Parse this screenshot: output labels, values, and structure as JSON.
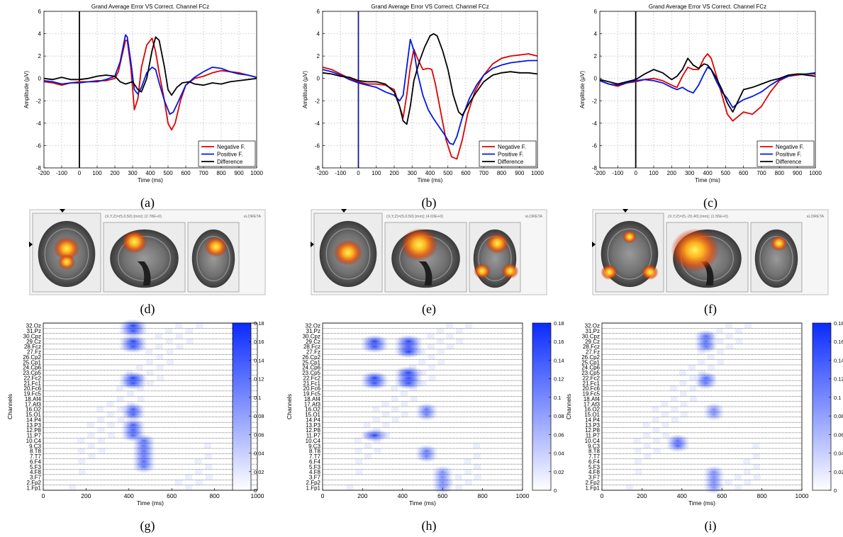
{
  "panel_labels": [
    "(a)",
    "(b)",
    "(c)",
    "(d)",
    "(e)",
    "(f)",
    "(g)",
    "(h)",
    "(i)"
  ],
  "colors": {
    "negative": "#e00000",
    "positive": "#0018e0",
    "difference": "#000000",
    "heat_max": "#0a2bff"
  },
  "chart_data": [
    {
      "type": "line",
      "title": "Grand Average Error VS Correct. Channel FCz",
      "xlabel": "Time (ms)",
      "ylabel": "Amplitude (μV)",
      "xlim": [
        -200,
        1000
      ],
      "ylim": [
        -8,
        6
      ],
      "xticks": [
        -200,
        -100,
        0,
        100,
        200,
        300,
        400,
        500,
        600,
        700,
        800,
        900,
        1000
      ],
      "yticks": [
        -8,
        -6,
        -4,
        -2,
        0,
        2,
        4,
        6
      ],
      "grid": true,
      "legend_position": "bottom-right",
      "series": [
        {
          "name": "Negative F.",
          "color": "#e00000",
          "x": [
            -200,
            -150,
            -100,
            -50,
            0,
            50,
            100,
            150,
            200,
            220,
            240,
            260,
            270,
            290,
            310,
            330,
            350,
            380,
            410,
            430,
            450,
            480,
            500,
            520,
            540,
            570,
            600,
            650,
            700,
            750,
            800,
            850,
            900,
            950,
            1000
          ],
          "y": [
            -0.3,
            -0.4,
            -0.6,
            -0.4,
            -0.3,
            -0.3,
            -0.2,
            -0.2,
            0,
            0.6,
            2.0,
            3.4,
            3.4,
            1.0,
            -2.8,
            -1.8,
            1.0,
            3.0,
            3.6,
            2.4,
            0.5,
            -2.0,
            -4.0,
            -4.6,
            -4.0,
            -2.0,
            -0.6,
            0,
            0.2,
            0.5,
            0.7,
            0.6,
            0.5,
            0.3,
            0.1
          ]
        },
        {
          "name": "Positive F.",
          "color": "#0018e0",
          "x": [
            -200,
            -150,
            -100,
            -50,
            0,
            50,
            100,
            150,
            200,
            230,
            260,
            270,
            290,
            310,
            330,
            350,
            380,
            410,
            430,
            450,
            480,
            510,
            530,
            560,
            600,
            650,
            700,
            750,
            800,
            850,
            900,
            950,
            1000
          ],
          "y": [
            -0.2,
            -0.3,
            -0.5,
            -0.4,
            -0.4,
            -0.3,
            -0.3,
            -0.1,
            0.2,
            1.5,
            3.9,
            3.7,
            1.5,
            -1.0,
            -1.4,
            -0.8,
            0.5,
            1.0,
            0.8,
            -0.4,
            -2.0,
            -3.2,
            -3.0,
            -2.0,
            -0.6,
            0.1,
            0.6,
            1.0,
            0.9,
            0.6,
            0.4,
            0.3,
            0.1
          ]
        },
        {
          "name": "Difference",
          "color": "#000000",
          "x": [
            -200,
            -150,
            -100,
            -50,
            0,
            50,
            100,
            150,
            200,
            230,
            260,
            280,
            300,
            330,
            350,
            380,
            410,
            430,
            450,
            480,
            500,
            520,
            550,
            580,
            620,
            650,
            700,
            750,
            800,
            850,
            900,
            950,
            1000
          ],
          "y": [
            0,
            -0.1,
            0.1,
            -0.1,
            -0.1,
            0,
            0.2,
            0.3,
            0.2,
            -0.3,
            -0.5,
            -0.4,
            -0.3,
            -1.0,
            -1.2,
            0,
            2.5,
            3.7,
            3.4,
            1.0,
            -1.0,
            -1.5,
            -0.8,
            -0.4,
            -0.3,
            -0.5,
            -0.6,
            -0.4,
            -0.5,
            -0.3,
            -0.2,
            -0.1,
            0
          ]
        }
      ]
    },
    {
      "type": "line",
      "title": "Grand Average Error VS Correct. Channel FCz",
      "xlabel": "Time (ms)",
      "ylabel": "Amplitude (μV)",
      "xlim": [
        -200,
        1000
      ],
      "ylim": [
        -8,
        6
      ],
      "xticks": [
        -200,
        -100,
        0,
        100,
        200,
        300,
        400,
        500,
        600,
        700,
        800,
        900,
        1000
      ],
      "yticks": [
        -8,
        -6,
        -4,
        -2,
        0,
        2,
        4,
        6
      ],
      "grid": true,
      "legend_position": "bottom-right",
      "series": [
        {
          "name": "Negative F.",
          "color": "#e00000",
          "x": [
            -200,
            -150,
            -100,
            -50,
            0,
            50,
            100,
            150,
            200,
            230,
            250,
            270,
            290,
            310,
            330,
            360,
            390,
            410,
            430,
            460,
            490,
            520,
            550,
            580,
            610,
            650,
            700,
            750,
            800,
            850,
            900,
            950,
            1000
          ],
          "y": [
            1.0,
            0.8,
            0.4,
            0,
            -0.3,
            -0.5,
            -0.5,
            -0.6,
            -1.0,
            -2.5,
            -3.5,
            -1.5,
            1.0,
            2.6,
            1.8,
            0.8,
            0.9,
            0.8,
            -0.5,
            -3.0,
            -5.5,
            -7.0,
            -7.2,
            -5.5,
            -3.2,
            -1.2,
            0.3,
            1.3,
            1.8,
            2.0,
            2.1,
            2.2,
            2.0
          ]
        },
        {
          "name": "Positive F.",
          "color": "#0018e0",
          "x": [
            -200,
            -150,
            -100,
            -50,
            0,
            50,
            100,
            150,
            200,
            230,
            250,
            270,
            290,
            310,
            330,
            360,
            390,
            420,
            450,
            480,
            510,
            530,
            550,
            580,
            620,
            660,
            700,
            750,
            800,
            850,
            900,
            950,
            1000
          ],
          "y": [
            0.8,
            0.6,
            0.3,
            -0.1,
            -0.4,
            -0.6,
            -0.8,
            -1.2,
            -1.5,
            -2.0,
            -1.5,
            1.0,
            3.5,
            2.5,
            0.5,
            -1.5,
            -2.8,
            -3.6,
            -4.3,
            -5.0,
            -5.8,
            -5.9,
            -5.2,
            -3.5,
            -1.8,
            -0.6,
            0.3,
            0.9,
            1.2,
            1.4,
            1.5,
            1.6,
            1.6
          ]
        },
        {
          "name": "Difference",
          "color": "#000000",
          "x": [
            -200,
            -150,
            -100,
            -50,
            0,
            50,
            100,
            150,
            200,
            230,
            250,
            270,
            290,
            310,
            340,
            370,
            400,
            420,
            440,
            470,
            500,
            530,
            560,
            580,
            620,
            660,
            700,
            750,
            800,
            850,
            900,
            950,
            1000
          ],
          "y": [
            0.5,
            0.4,
            0.2,
            0.1,
            -0.2,
            -0.3,
            -0.3,
            -0.5,
            -1.2,
            -2.5,
            -3.8,
            -4.1,
            -2.5,
            -0.2,
            1.5,
            2.8,
            3.8,
            4.0,
            3.8,
            2.5,
            0.8,
            -1.5,
            -3.0,
            -3.3,
            -2.2,
            -1.2,
            -0.3,
            0.3,
            0.5,
            0.6,
            0.5,
            0.5,
            0.4
          ]
        }
      ]
    },
    {
      "type": "line",
      "title": "Grand Average Error VS Correct. Channel FCz",
      "xlabel": "Time (ms)",
      "ylabel": "Amplitude (μV)",
      "xlim": [
        -200,
        1000
      ],
      "ylim": [
        -8,
        6
      ],
      "xticks": [
        -200,
        -100,
        0,
        100,
        200,
        300,
        400,
        500,
        600,
        700,
        800,
        900,
        1000
      ],
      "yticks": [
        -8,
        -6,
        -4,
        -2,
        0,
        2,
        4,
        6
      ],
      "grid": true,
      "legend_position": "bottom-right",
      "series": [
        {
          "name": "Negative F.",
          "color": "#e00000",
          "x": [
            -200,
            -150,
            -100,
            -50,
            0,
            50,
            100,
            150,
            200,
            230,
            260,
            290,
            320,
            350,
            380,
            400,
            420,
            450,
            480,
            510,
            540,
            570,
            600,
            650,
            700,
            750,
            800,
            850,
            900,
            950,
            1000
          ],
          "y": [
            -0.2,
            -0.5,
            -0.7,
            -0.4,
            -0.3,
            -0.1,
            0,
            -0.2,
            -0.6,
            -0.8,
            0.2,
            1.0,
            0.8,
            0.8,
            1.8,
            2.2,
            1.8,
            0.2,
            -1.5,
            -3.2,
            -3.8,
            -3.4,
            -3.0,
            -3.2,
            -2.5,
            -1.2,
            -0.2,
            0.2,
            0.3,
            0.4,
            0.4
          ]
        },
        {
          "name": "Positive F.",
          "color": "#0018e0",
          "x": [
            -200,
            -150,
            -100,
            -50,
            0,
            50,
            100,
            150,
            200,
            230,
            260,
            290,
            320,
            350,
            380,
            400,
            420,
            450,
            480,
            510,
            540,
            570,
            600,
            650,
            700,
            750,
            800,
            850,
            900,
            950,
            1000
          ],
          "y": [
            -0.2,
            -0.5,
            -0.6,
            -0.4,
            -0.2,
            -0.1,
            -0.2,
            -0.4,
            -0.8,
            -1.0,
            -0.8,
            -1.1,
            -1.3,
            -0.6,
            0.4,
            1.0,
            0.8,
            -0.3,
            -1.2,
            -1.8,
            -2.6,
            -2.2,
            -1.9,
            -1.6,
            -1.2,
            -0.6,
            -0.1,
            0.2,
            0.4,
            0.4,
            0.5
          ]
        },
        {
          "name": "Difference",
          "color": "#000000",
          "x": [
            -200,
            -150,
            -100,
            -50,
            0,
            50,
            100,
            150,
            200,
            230,
            260,
            290,
            320,
            350,
            380,
            400,
            420,
            450,
            480,
            510,
            540,
            570,
            600,
            650,
            700,
            750,
            800,
            850,
            900,
            950,
            1000
          ],
          "y": [
            -0.1,
            -0.3,
            -0.5,
            -0.3,
            -0.1,
            0.4,
            0.8,
            0.5,
            -0.1,
            0.2,
            0.8,
            1.8,
            1.2,
            0.9,
            1.3,
            1.2,
            0.8,
            0,
            -1.0,
            -2.2,
            -3.0,
            -2.0,
            -1.0,
            -0.8,
            -0.5,
            -0.2,
            0,
            0.3,
            0.4,
            0.3,
            0.2
          ]
        }
      ]
    },
    {
      "type": "heatmap",
      "xlabel": "Time (ms)",
      "ylabel": "Channels",
      "xlim": [
        0,
        1000
      ],
      "xticks": [
        0,
        200,
        400,
        600,
        800,
        1000
      ],
      "colorbar": {
        "min": 0,
        "max": 0.18,
        "ticks": [
          0,
          0.02,
          0.04,
          0.06,
          0.08,
          0.1,
          0.12,
          0.14,
          0.16,
          0.18
        ]
      },
      "channels": [
        "1.Fp1",
        "2.Fp2",
        "3.F7",
        "4.F8",
        "5.F3",
        "6.F4",
        "7.T7",
        "8.T8",
        "9.C3",
        "10.C4",
        "11.P7",
        "12.P8",
        "13.P3",
        "14.P4",
        "15.O1",
        "16.O2",
        "17.Af3",
        "18.Af4",
        "19.Fc5",
        "20.Fc6",
        "21.Fc1",
        "22.Fc2",
        "23.Cp5",
        "24.Cp6",
        "25.Cp1",
        "26.Cp2",
        "27.Fz",
        "28.Fcz",
        "29.Cz",
        "30.Cpz",
        "31.Pz",
        "32.Oz"
      ],
      "hotspots": [
        {
          "time": 420,
          "channels": [
            28,
            29,
            21,
            22,
            31,
            32
          ],
          "value": 0.17
        },
        {
          "time": 420,
          "channels": [
            15,
            16,
            11,
            12,
            13
          ],
          "value": 0.1
        },
        {
          "time": 470,
          "channels": [
            7,
            8,
            9,
            10,
            5,
            6
          ],
          "value": 0.08
        },
        {
          "time": 300,
          "channels": [],
          "value": 0.04
        }
      ]
    },
    {
      "type": "heatmap",
      "xlabel": "Time (ms)",
      "ylabel": "Channels",
      "xlim": [
        0,
        1000
      ],
      "xticks": [
        0,
        200,
        400,
        600,
        800,
        1000
      ],
      "colorbar": {
        "min": 0,
        "max": 0.18,
        "ticks": [
          0,
          0.02,
          0.04,
          0.06,
          0.08,
          0.1,
          0.12,
          0.14,
          0.16,
          0.18
        ]
      },
      "channels": [
        "1.Fp1",
        "2.Fp2",
        "3.F7",
        "4.F8",
        "5.F3",
        "6.F4",
        "7.T7",
        "8.T8",
        "9.C3",
        "10.C4",
        "11.P7",
        "12.P8",
        "13.P3",
        "14.P4",
        "15.O1",
        "16.O2",
        "17.Af3",
        "18.Af4",
        "19.Fc5",
        "20.Fc6",
        "21.Fc1",
        "22.Fc2",
        "23.Cp5",
        "24.Cp6",
        "25.Cp1",
        "26.Cp2",
        "27.Fz",
        "28.Fcz",
        "29.Cz",
        "30.Cpz",
        "31.Pz",
        "32.Oz"
      ],
      "hotspots": [
        {
          "time": 260,
          "channels": [
            28,
            29,
            21,
            22,
            11
          ],
          "value": 0.16
        },
        {
          "time": 430,
          "channels": [
            28,
            29,
            27,
            21,
            22,
            23
          ],
          "value": 0.17
        },
        {
          "time": 520,
          "channels": [
            7,
            8,
            15,
            16
          ],
          "value": 0.07
        },
        {
          "time": 600,
          "channels": [
            1,
            2,
            3,
            4
          ],
          "value": 0.05
        }
      ]
    },
    {
      "type": "heatmap",
      "xlabel": "Time (ms)",
      "ylabel": "Channels",
      "xlim": [
        0,
        1000
      ],
      "xticks": [
        0,
        200,
        400,
        600,
        800,
        1000
      ],
      "colorbar": {
        "min": 0,
        "max": 0.18,
        "ticks": [
          0,
          0.02,
          0.04,
          0.06,
          0.08,
          0.1,
          0.12,
          0.14,
          0.16,
          0.18
        ]
      },
      "channels": [
        "1.Fp1",
        "2.Fp2",
        "3.F7",
        "4.F8",
        "5.F3",
        "6.F4",
        "7.T7",
        "8.T8",
        "9.C3",
        "10.C4",
        "11.P7",
        "12.P8",
        "13.P3",
        "14.P4",
        "15.O1",
        "16.O2",
        "17.Af3",
        "18.Af4",
        "19.Fc5",
        "20.Fc6",
        "21.Fc1",
        "22.Fc2",
        "23.Cp5",
        "24.Cp6",
        "25.Cp1",
        "26.Cp2",
        "27.Fz",
        "28.Fcz",
        "29.Cz",
        "30.Cpz",
        "31.Pz",
        "32.Oz"
      ],
      "hotspots": [
        {
          "time": 380,
          "channels": [
            10,
            9
          ],
          "value": 0.09
        },
        {
          "time": 520,
          "channels": [
            28,
            29,
            21,
            22,
            30
          ],
          "value": 0.08
        },
        {
          "time": 560,
          "channels": [
            1,
            2,
            3,
            4,
            15,
            16
          ],
          "value": 0.05
        }
      ]
    }
  ],
  "brain_maps": [
    {
      "header": "(X,Y,Z)=(5,0,50) [mm]; (2.78E+0)",
      "tag": "sLORETA"
    },
    {
      "header": "(X,Y,Z)=(5,0,50) [mm]; (4.03E+0)",
      "tag": "sLORETA"
    },
    {
      "header": "(X,Y,Z)=(5,-20,40) [mm]; (1.55E+0)",
      "tag": "sLORETA"
    }
  ]
}
